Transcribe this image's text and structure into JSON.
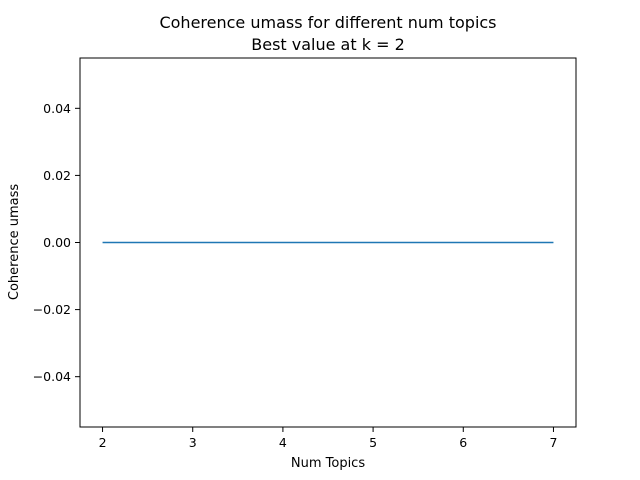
{
  "chart_data": {
    "type": "line",
    "title": "Coherence umass for different num topics",
    "subtitle": "Best value at k = 2",
    "xlabel": "Num Topics",
    "ylabel": "Coherence umass",
    "x": [
      2,
      3,
      4,
      5,
      6,
      7
    ],
    "series": [
      {
        "values": [
          0,
          0,
          0,
          0,
          0,
          0
        ],
        "color": "#1f77b4"
      }
    ],
    "xlim": [
      1.75,
      7.25
    ],
    "ylim": [
      -0.055,
      0.055
    ],
    "xticks": [
      2,
      3,
      4,
      5,
      6,
      7
    ],
    "xtick_labels": [
      "2",
      "3",
      "4",
      "5",
      "6",
      "7"
    ],
    "yticks": [
      -0.04,
      -0.02,
      0.0,
      0.02,
      0.04
    ],
    "ytick_labels": [
      "−0.04",
      "−0.02",
      "0.00",
      "0.02",
      "0.04"
    ],
    "grid": false,
    "legend": "none"
  }
}
